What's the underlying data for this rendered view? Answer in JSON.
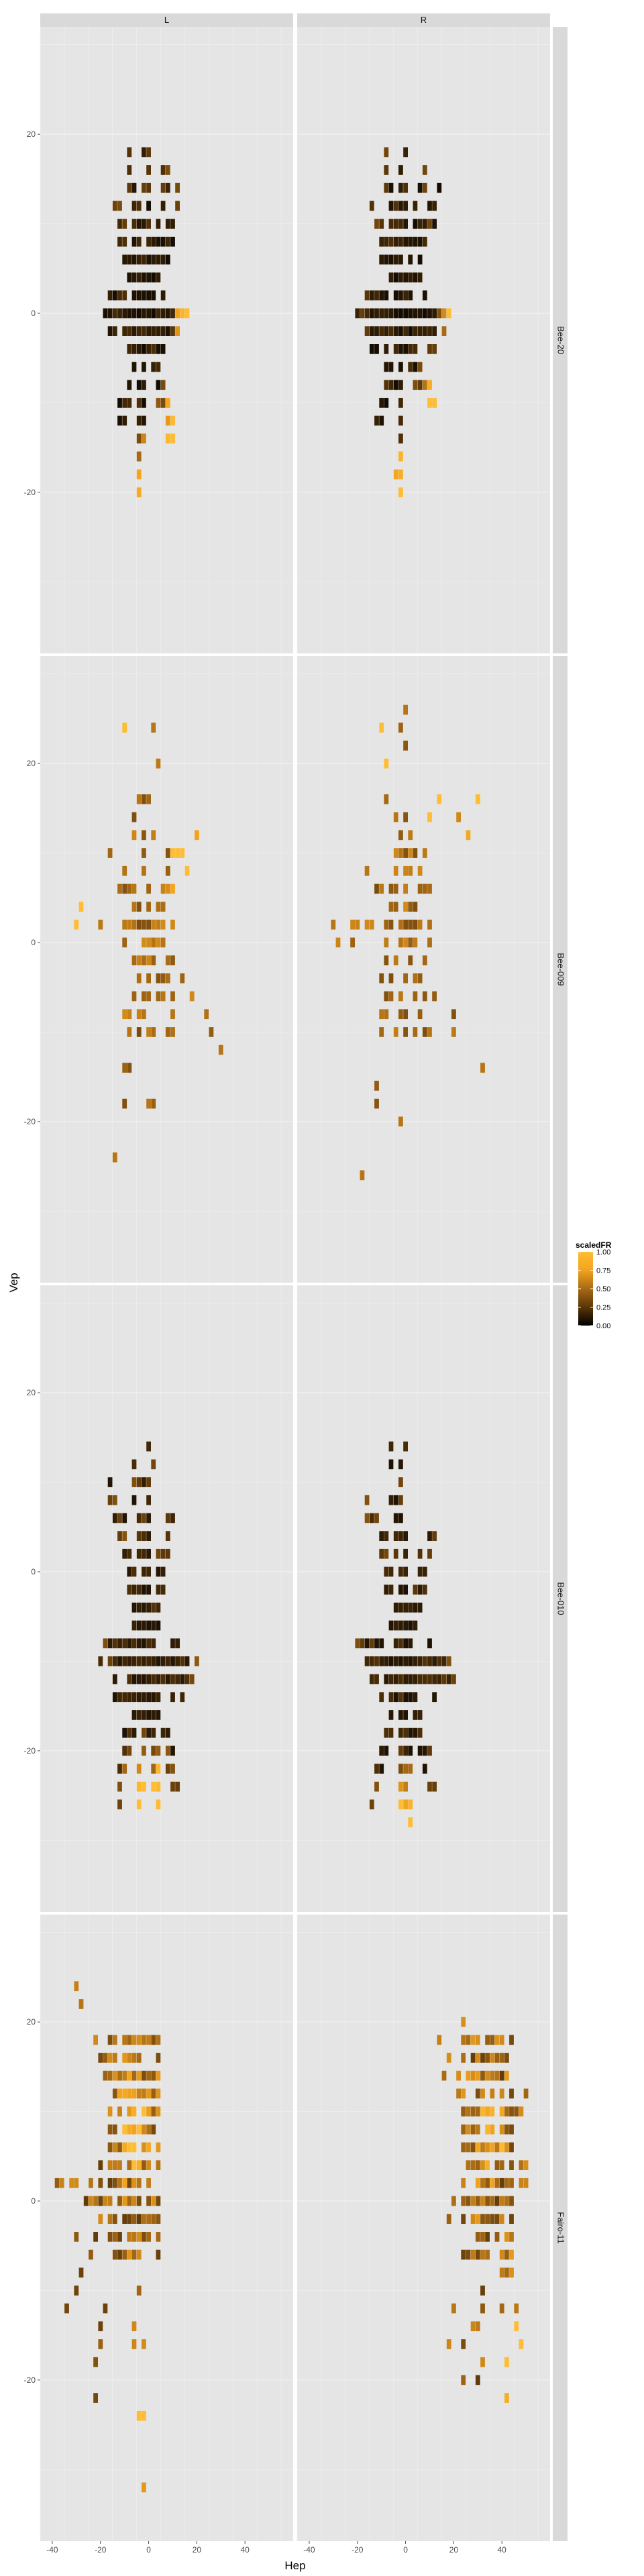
{
  "chart_data": {
    "type": "heatmap",
    "xlabel": "Hep",
    "ylabel": "Vep",
    "xlim": [
      -45,
      60
    ],
    "ylim": [
      -38,
      32
    ],
    "x_ticks": [
      -40,
      -20,
      0,
      20,
      40
    ],
    "y_ticks": [
      -20,
      0,
      20
    ],
    "x_tick_labels": [
      "-40",
      "-20",
      "0",
      "20",
      "40"
    ],
    "y_tick_labels": [
      "-20",
      "0",
      "20"
    ],
    "columns": [
      "L",
      "R"
    ],
    "rows": [
      "Bee-20",
      "Bee-009",
      "Bee-010",
      "Fairo-11"
    ],
    "grid": true,
    "legend": {
      "title": "scaledFR",
      "position": "right",
      "ticks": [
        0,
        0.25,
        0.5,
        0.75,
        1
      ],
      "tick_labels": [
        "0.00",
        "0.25",
        "0.50",
        "0.75",
        "1.00"
      ],
      "colors": [
        "#000000",
        "#5a3608",
        "#a86a14",
        "#f2a31d",
        "#ffbd35"
      ]
    },
    "panels": [
      {
        "row": "Bee-20",
        "col": "L",
        "pattern": "star",
        "center": [
          -2,
          -1
        ],
        "arms": [
          [
            -8,
            18
          ],
          [
            0,
            19
          ],
          [
            8,
            17
          ],
          [
            14,
            14
          ],
          [
            -14,
            12
          ],
          [
            -16,
            2
          ],
          [
            -12,
            -13
          ],
          [
            -4,
            -20
          ],
          [
            10,
            -14
          ],
          [
            16,
            0
          ],
          [
            -20,
            0
          ],
          [
            6,
            -8
          ]
        ],
        "hot": [
          [
            16,
            -1
          ],
          [
            10,
            -13
          ],
          [
            0,
            -19
          ]
        ],
        "base": 0.05
      },
      {
        "row": "Bee-20",
        "col": "R",
        "pattern": "star",
        "center": [
          -2,
          -1
        ],
        "arms": [
          [
            -8,
            18
          ],
          [
            0,
            19
          ],
          [
            8,
            17
          ],
          [
            14,
            14
          ],
          [
            -14,
            12
          ],
          [
            -16,
            2
          ],
          [
            -12,
            -13
          ],
          [
            -2,
            -21
          ],
          [
            12,
            -11
          ],
          [
            20,
            0
          ],
          [
            -20,
            0
          ],
          [
            6,
            -8
          ]
        ],
        "hot": [
          [
            20,
            1
          ],
          [
            12,
            -10
          ],
          [
            -2,
            -20
          ]
        ],
        "base": 0.05
      },
      {
        "row": "Bee-009",
        "col": "L",
        "pattern": "scatter",
        "center": [
          0,
          0
        ],
        "arms": [
          [
            -10,
            24
          ],
          [
            2,
            24
          ],
          [
            14,
            10
          ],
          [
            30,
            -12
          ],
          [
            -30,
            2
          ],
          [
            -14,
            -25
          ],
          [
            0,
            -18
          ],
          [
            -4,
            16
          ],
          [
            10,
            -8
          ],
          [
            -8,
            -10
          ],
          [
            6,
            4
          ],
          [
            -16,
            10
          ],
          [
            20,
            12
          ]
        ],
        "hot": [
          [
            -10,
            24
          ],
          [
            -30,
            2
          ],
          [
            14,
            10
          ]
        ],
        "base": 0.35
      },
      {
        "row": "Bee-009",
        "col": "R",
        "pattern": "scatter",
        "center": [
          0,
          0
        ],
        "arms": [
          [
            -10,
            24
          ],
          [
            0,
            26
          ],
          [
            14,
            16
          ],
          [
            32,
            -14
          ],
          [
            -30,
            2
          ],
          [
            -18,
            -27
          ],
          [
            -2,
            -20
          ],
          [
            -4,
            14
          ],
          [
            10,
            -10
          ],
          [
            -10,
            -8
          ],
          [
            6,
            6
          ],
          [
            -16,
            8
          ],
          [
            30,
            16
          ]
        ],
        "hot": [
          [
            -10,
            24
          ],
          [
            30,
            16
          ],
          [
            14,
            16
          ]
        ],
        "base": 0.35
      },
      {
        "row": "Bee-010",
        "col": "L",
        "pattern": "fan",
        "center": [
          0,
          -11
        ],
        "arms": [
          [
            -16,
            10
          ],
          [
            -6,
            14
          ],
          [
            0,
            15
          ],
          [
            10,
            8
          ],
          [
            -20,
            -9
          ],
          [
            20,
            -11
          ],
          [
            -14,
            -25
          ],
          [
            -4,
            -25
          ],
          [
            4,
            -26
          ],
          [
            12,
            -25
          ],
          [
            -10,
            4
          ],
          [
            6,
            2
          ]
        ],
        "hot": [
          [
            -4,
            -25
          ],
          [
            4,
            -26
          ],
          [
            0,
            -27
          ]
        ],
        "base": 0.08
      },
      {
        "row": "Bee-010",
        "col": "R",
        "pattern": "fan",
        "center": [
          0,
          -11
        ],
        "arms": [
          [
            -16,
            9
          ],
          [
            -6,
            14
          ],
          [
            -2,
            15
          ],
          [
            12,
            6
          ],
          [
            -20,
            -9
          ],
          [
            20,
            -11
          ],
          [
            -14,
            -25
          ],
          [
            -2,
            -27
          ],
          [
            2,
            -28
          ],
          [
            12,
            -25
          ],
          [
            -10,
            4
          ],
          [
            6,
            2
          ]
        ],
        "hot": [
          [
            -2,
            -27
          ],
          [
            2,
            -28
          ],
          [
            0,
            -28
          ]
        ],
        "base": 0.08
      },
      {
        "row": "Fairo-11",
        "col": "L",
        "pattern": "cloud",
        "center": [
          -6,
          6
        ],
        "arms": [
          [
            -40,
            -6
          ],
          [
            -32,
            24
          ],
          [
            -24,
            20
          ],
          [
            -10,
            20
          ],
          [
            2,
            16
          ],
          [
            -36,
            -14
          ],
          [
            -24,
            -22
          ],
          [
            -4,
            -26
          ],
          [
            -2,
            -33
          ],
          [
            -40,
            0
          ],
          [
            -18,
            0
          ],
          [
            0,
            4
          ]
        ],
        "hot": [
          [
            -4,
            -26
          ],
          [
            -40,
            -6
          ],
          [
            -6,
            8
          ]
        ],
        "base": 0.45
      },
      {
        "row": "Fairo-11",
        "col": "R",
        "pattern": "cloud",
        "center": [
          34,
          6
        ],
        "arms": [
          [
            14,
            18
          ],
          [
            24,
            22
          ],
          [
            36,
            24
          ],
          [
            44,
            18
          ],
          [
            50,
            10
          ],
          [
            12,
            -6
          ],
          [
            16,
            -18
          ],
          [
            24,
            -22
          ],
          [
            30,
            -24
          ],
          [
            44,
            -22
          ],
          [
            50,
            -18
          ],
          [
            52,
            2
          ]
        ],
        "hot": [
          [
            50,
            -16
          ],
          [
            44,
            -18
          ],
          [
            34,
            8
          ]
        ],
        "base": 0.45
      }
    ]
  }
}
